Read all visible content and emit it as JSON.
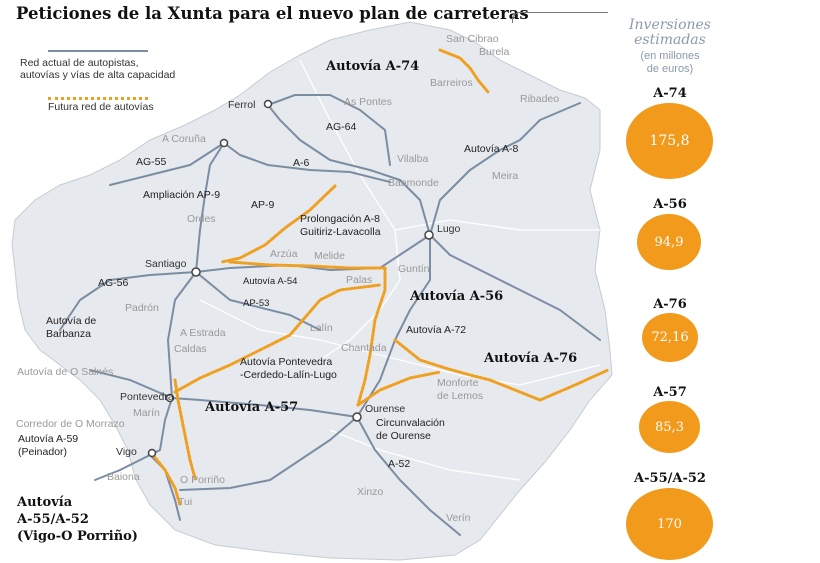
{
  "title": "Peticiones de la Xunta para el nuevo plan de carreteras",
  "legend": {
    "existing": "Red actual de autopistas, autovías y vías de alta capacidad",
    "existing_line1": "Red actual de autopistas,",
    "existing_line2": "autovías y vías de alta capacidad",
    "future": "Futura red de autovías"
  },
  "colors": {
    "future_road": "#f0a020",
    "existing_road": "#7b8da2",
    "bubble": "#f19a1b",
    "land": "#e6e9ed",
    "border": "#c5ccd4"
  },
  "panel": {
    "title_line1": "Inversiones",
    "title_line2": "estimadas",
    "subtitle_line1": "(en millones",
    "subtitle_line2": "de euros)",
    "investments": [
      {
        "label": "A-74",
        "value": "175,8"
      },
      {
        "label": "A-56",
        "value": "94,9"
      },
      {
        "label": "A-76",
        "value": "72,16"
      },
      {
        "label": "A-57",
        "value": "85,3"
      },
      {
        "label": "A-55/A-52",
        "value": "170"
      }
    ]
  },
  "cities": {
    "san_cibrao": "San Cibrao",
    "burela": "Burela",
    "barreiros": "Barreiros",
    "ribadeo": "Ribadeo",
    "ferrol": "Ferrol",
    "as_pontes": "As Pontes",
    "a_coruna": "A Coruña",
    "vilalba": "Vilalba",
    "meira": "Meira",
    "baamonde": "Baamonde",
    "ordes": "Ordes",
    "lugo": "Lugo",
    "santiago": "Santiago",
    "arzua": "Arzúa",
    "melide": "Melide",
    "guntin": "Guntín",
    "palas": "Palas",
    "padron": "Padrón",
    "a_estrada": "A Estrada",
    "lalin": "Lalín",
    "caldas": "Caldas",
    "chantada": "Chantada",
    "monforte_line1": "Monforte",
    "monforte_line2": "de Lemos",
    "pontevedra": "Pontevedra",
    "marin": "Marín",
    "ourense": "Ourense",
    "vigo": "Vigo",
    "baiona": "Baiona",
    "o_porrino": "O Porriño",
    "tui": "Tui",
    "xinzo": "Xinzo",
    "verin": "Verín"
  },
  "roads": {
    "ag64": "AG-64",
    "a6": "A-6",
    "a8": "Autovía A-8",
    "ag55": "AG-55",
    "ap9_ext": "Ampliación AP-9",
    "ap9": "AP-9",
    "a8_ext_line1": "Prolongación A-8",
    "a8_ext_line2": "Guitiriz-Lavacolla",
    "a54": "Autovía A-54",
    "ag56": "AG-56",
    "ap53": "AP-53",
    "barbanza_line1": "Autovía de",
    "barbanza_line2": "Barbanza",
    "a72": "Autovía A-72",
    "salnes": "Autovía de O Salnés",
    "pontevedra_lalin_line1": "Autovía Pontevedra",
    "pontevedra_lalin_line2": "-Cerdedo-Lalín-Lugo",
    "morrazo": "Corredor de O Morrazo",
    "a59_line1": "Autovía A-59",
    "a59_line2": "(Peinador)",
    "circunvalacion_line1": "Circunvalación",
    "circunvalacion_line2": "de Ourense",
    "a52": "A-52"
  },
  "highlights": {
    "a74": "Autovía A-74",
    "a56": "Autovía A-56",
    "a76": "Autovía A-76",
    "a57": "Autovía A-57",
    "a55_line1": "Autovía",
    "a55_line2": "A-55/A-52",
    "a55_line3": "(Vigo-O Porriño)"
  }
}
